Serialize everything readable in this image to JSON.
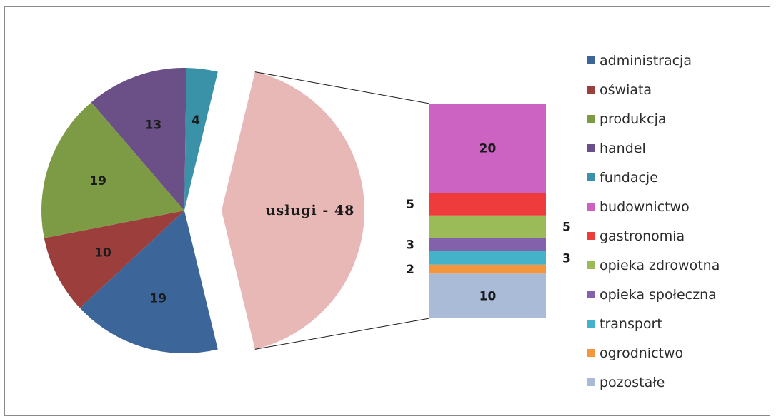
{
  "chart_data": [
    {
      "type": "pie",
      "title": "",
      "slices": [
        {
          "label": "administracja",
          "value": 19,
          "color": "#3c6699"
        },
        {
          "label": "oświata",
          "value": 10,
          "color": "#9c3f3c"
        },
        {
          "label": "produkcja",
          "value": 19,
          "color": "#7d9b44"
        },
        {
          "label": "handel",
          "value": 13,
          "color": "#6a5087"
        },
        {
          "label": "fundacje",
          "value": 4,
          "color": "#3a92a8"
        },
        {
          "label": "usługi",
          "value": 48,
          "color": "#e8b8b7",
          "display_label": "usługi - 48",
          "exploded": true
        }
      ]
    },
    {
      "type": "bar",
      "stacked": true,
      "categories": [
        "usługi"
      ],
      "series": [
        {
          "name": "pozostałe",
          "value": 10,
          "label": "10",
          "color": "#aabbd8"
        },
        {
          "name": "ogrodnictwo",
          "value": 2,
          "label": "2",
          "color": "#f4963e"
        },
        {
          "name": "transport",
          "value": 3,
          "label": "3",
          "color": "#44b2c8"
        },
        {
          "name": "opieka społeczna",
          "value": 3,
          "label": "3",
          "color": "#8361ab"
        },
        {
          "name": "opieka zdrowotna",
          "value": 5,
          "label": "5",
          "color": "#9bbb59"
        },
        {
          "name": "gastronomia",
          "value": 5,
          "label": "5",
          "color": "#ee3b3b"
        },
        {
          "name": "budownictwo",
          "value": 20,
          "label": "20",
          "color": "#cc63c2"
        }
      ]
    }
  ],
  "legend": {
    "placement": "right",
    "items": [
      {
        "label": "administracja",
        "color": "#3c6699"
      },
      {
        "label": "oświata",
        "color": "#9c3f3c"
      },
      {
        "label": "produkcja",
        "color": "#7d9b44"
      },
      {
        "label": "handel",
        "color": "#6a5087"
      },
      {
        "label": "fundacje",
        "color": "#3a92a8"
      },
      {
        "label": "budownictwo",
        "color": "#cc63c2"
      },
      {
        "label": "gastronomia",
        "color": "#ee3b3b"
      },
      {
        "label": "opieka zdrowotna",
        "color": "#9bbb59"
      },
      {
        "label": "opieka społeczna",
        "color": "#8361ab"
      },
      {
        "label": "transport",
        "color": "#44b2c8"
      },
      {
        "label": "ogrodnictwo",
        "color": "#f4963e"
      },
      {
        "label": "pozostałe",
        "color": "#aabbd8"
      }
    ]
  }
}
